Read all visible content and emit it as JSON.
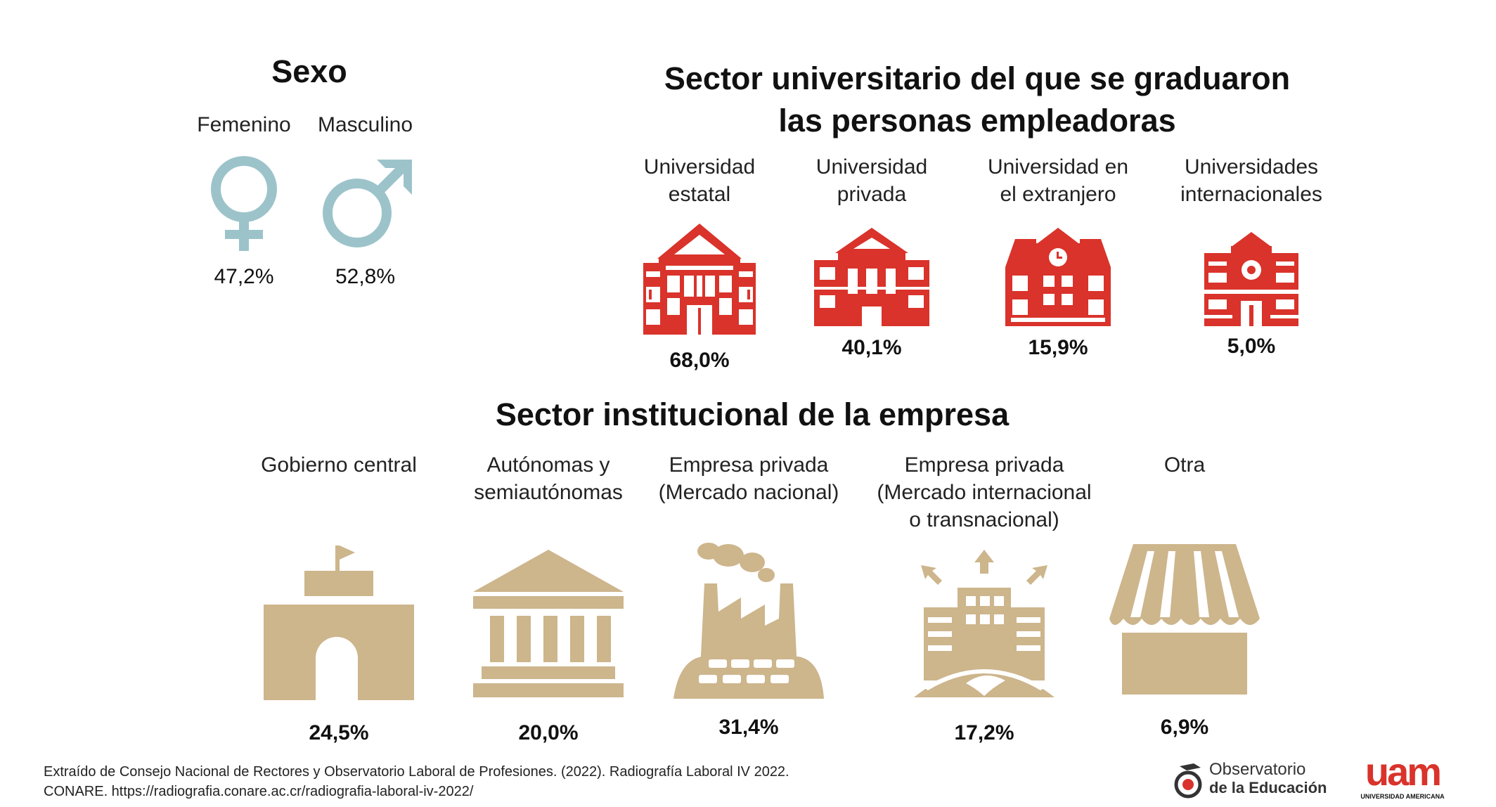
{
  "colors": {
    "gender": "#9cc3ca",
    "university": "#d9332b",
    "sector": "#cdb58c",
    "text": "#111111"
  },
  "sexo": {
    "title": "Sexo",
    "items": [
      {
        "label": "Femenino",
        "value": "47,2%",
        "icon": "female-symbol-icon"
      },
      {
        "label": "Masculino",
        "value": "52,8%",
        "icon": "male-symbol-icon"
      }
    ]
  },
  "universidad": {
    "title_line1": "Sector universitario del que se graduaron",
    "title_line2": "las personas empleadoras",
    "items": [
      {
        "label": "Universidad\nestatal",
        "value": "68,0%",
        "icon": "state-university-building-icon"
      },
      {
        "label": "Universidad\nprivada",
        "value": "40,1%",
        "icon": "private-university-building-icon"
      },
      {
        "label": "Universidad en\nel extranjero",
        "value": "15,9%",
        "icon": "foreign-university-building-icon"
      },
      {
        "label": "Universidades\ninternacionales",
        "value": "5,0%",
        "icon": "international-university-building-icon"
      }
    ]
  },
  "sector": {
    "title": "Sector institucional de la empresa",
    "items": [
      {
        "label": "Gobierno central",
        "value": "24,5%",
        "icon": "government-building-icon"
      },
      {
        "label": "Autónomas y\nsemiautónomas",
        "value": "20,0%",
        "icon": "columns-building-icon"
      },
      {
        "label": "Empresa privada\n(Mercado nacional)",
        "value": "31,4%",
        "icon": "factory-icon"
      },
      {
        "label": "Empresa privada\n(Mercado internacional\no transnacional)",
        "value": "17,2%",
        "icon": "global-building-icon"
      },
      {
        "label": "Otra",
        "value": "6,9%",
        "icon": "storefront-icon"
      }
    ]
  },
  "source": {
    "text": "Extraído de Consejo Nacional de Rectores y Observatorio Laboral de Profesiones. (2022). Radiografía Laboral IV 2022.\nCONARE. https://radiografia.conare.ac.cr/radiografia-laboral-iv-2022/"
  },
  "logos": {
    "observatorio_line1": "Observatorio",
    "observatorio_line2": "de la Educación",
    "uam_mark": "uam",
    "uam_name": "UNIVERSIDAD AMERICANA"
  }
}
